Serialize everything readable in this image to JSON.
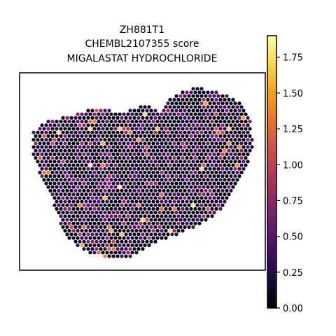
{
  "chart_data": {
    "type": "scatter",
    "title_lines": [
      "ZH881T1",
      "CHEMBL2107355 score",
      "MIGALASTAT HYDROCHLORIDE"
    ],
    "xlabel": "",
    "ylabel": "",
    "grid": false,
    "axis_ticks_visible": false,
    "colormap": "inferno",
    "colorbar": {
      "range": [
        0.0,
        1.9
      ],
      "ticks": [
        0.0,
        0.25,
        0.5,
        0.75,
        1.0,
        1.25,
        1.5,
        1.75
      ],
      "tick_labels": [
        "0.00",
        "0.25",
        "0.50",
        "0.75",
        "1.00",
        "1.25",
        "1.50",
        "1.75"
      ],
      "location": "right"
    },
    "colors": {
      "background": "#ffffff",
      "frame": "#000000",
      "low": "#000004",
      "high": "#fcffa4"
    },
    "tissue_outline": [
      [
        0.05,
        0.7
      ],
      [
        0.1,
        0.75
      ],
      [
        0.2,
        0.78
      ],
      [
        0.3,
        0.82
      ],
      [
        0.42,
        0.8
      ],
      [
        0.52,
        0.84
      ],
      [
        0.58,
        0.8
      ],
      [
        0.62,
        0.88
      ],
      [
        0.72,
        0.93
      ],
      [
        0.82,
        0.9
      ],
      [
        0.9,
        0.85
      ],
      [
        0.94,
        0.78
      ],
      [
        0.95,
        0.62
      ],
      [
        0.91,
        0.48
      ],
      [
        0.85,
        0.35
      ],
      [
        0.78,
        0.26
      ],
      [
        0.68,
        0.2
      ],
      [
        0.55,
        0.14
      ],
      [
        0.45,
        0.06
      ],
      [
        0.36,
        0.06
      ],
      [
        0.26,
        0.1
      ],
      [
        0.18,
        0.18
      ],
      [
        0.15,
        0.3
      ],
      [
        0.12,
        0.4
      ],
      [
        0.08,
        0.5
      ],
      [
        0.05,
        0.58
      ]
    ]
  }
}
